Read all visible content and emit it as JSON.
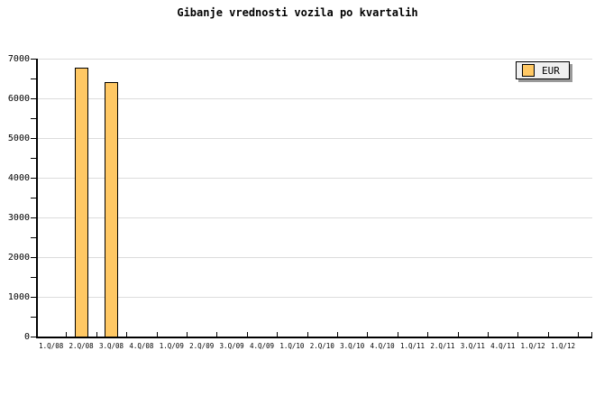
{
  "chart_data": {
    "type": "bar",
    "title": "Gibanje vrednosti vozila po kvartalih",
    "categories": [
      "1.Q/08",
      "2.Q/08",
      "3.Q/08",
      "4.Q/08",
      "1.Q/09",
      "2.Q/09",
      "3.Q/09",
      "4.Q/09",
      "1.Q/10",
      "2.Q/10",
      "3.Q/10",
      "4.Q/10",
      "1.Q/11",
      "2.Q/11",
      "3.Q/11",
      "4.Q/11",
      "1.Q/12",
      "1.Q/12"
    ],
    "series": [
      {
        "name": "EUR",
        "values": [
          null,
          6770,
          6410,
          null,
          null,
          null,
          null,
          null,
          null,
          null,
          null,
          null,
          null,
          null,
          null,
          null,
          null,
          null
        ]
      }
    ],
    "xlabel": "",
    "ylabel": "",
    "ylim": [
      0,
      7000
    ],
    "y_major_step": 1000,
    "y_minor_step": 500,
    "y_tick_labels": [
      "0",
      "1000",
      "2000",
      "3000",
      "4000",
      "5000",
      "6000",
      "7000"
    ],
    "grid": "horizontal-major",
    "legend_position": "top-right",
    "colors": {
      "bar_fill": "#FFC864",
      "bar_border": "#000000",
      "gridline": "#DCDCDC",
      "axis": "#000000",
      "text": "#000000",
      "legend_bg": "#F0F0F0",
      "legend_border": "#000000",
      "legend_shadow": "#999999",
      "background": "#FFFFFF"
    }
  }
}
